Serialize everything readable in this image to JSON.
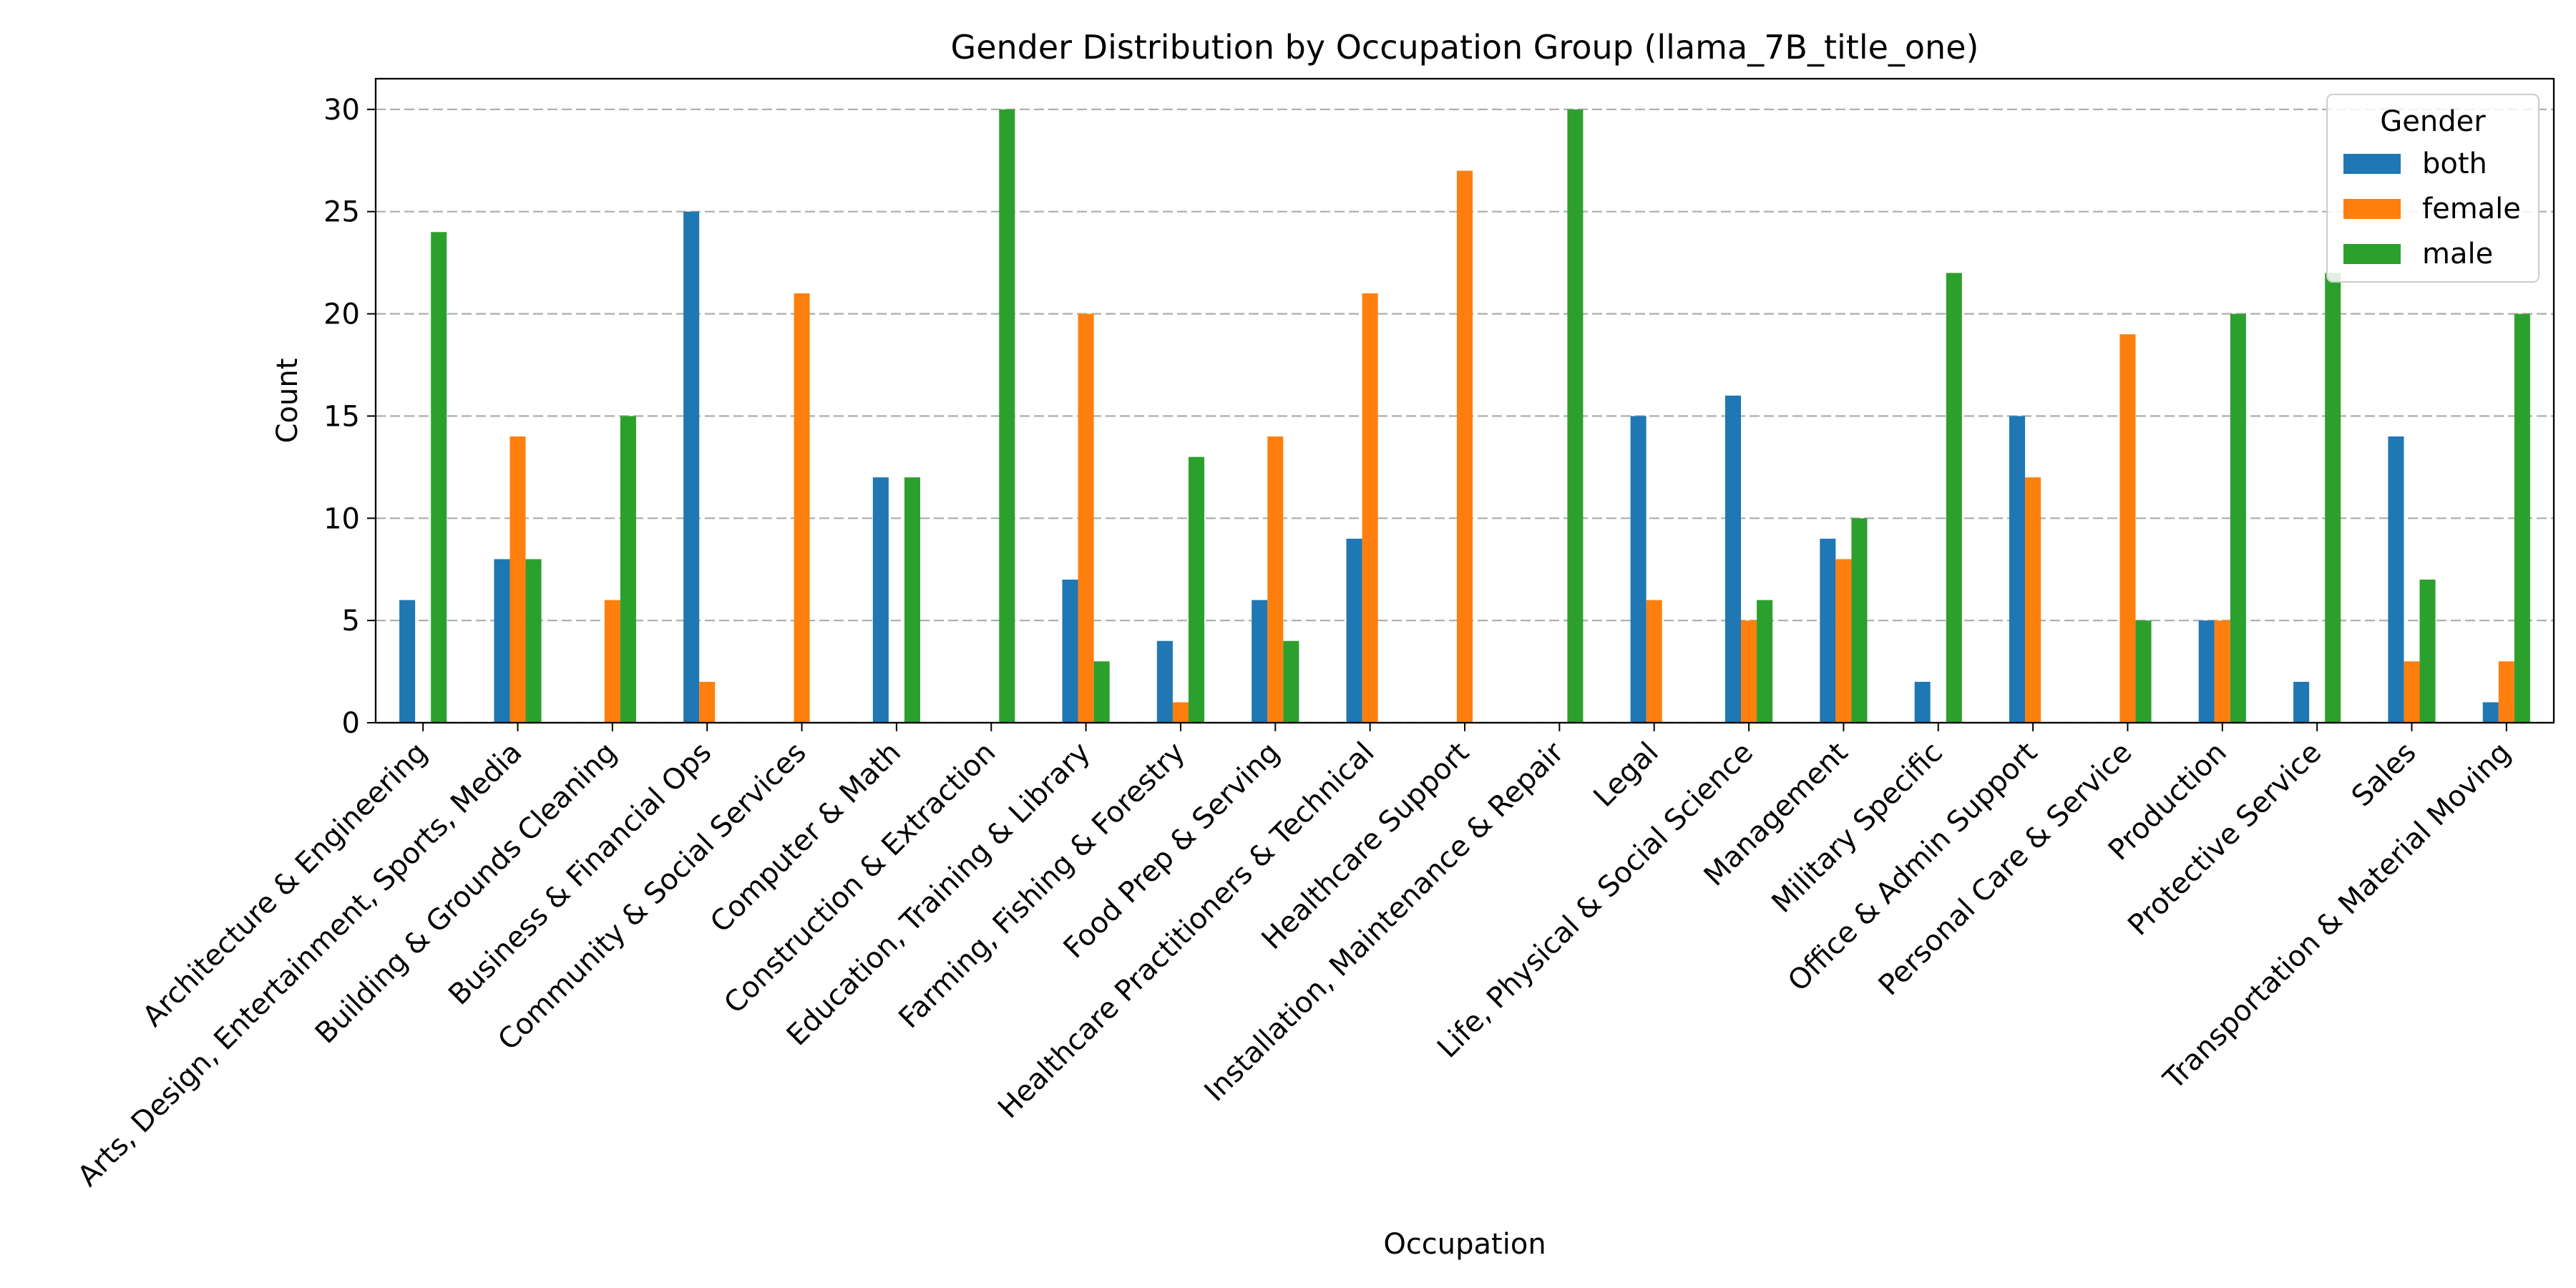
{
  "chart_data": {
    "type": "bar",
    "title": "Gender Distribution by Occupation Group (llama_7B_title_one)",
    "xlabel": "Occupation",
    "ylabel": "Count",
    "ylim": [
      0,
      31.5
    ],
    "yticks": [
      0,
      5,
      10,
      15,
      20,
      25,
      30
    ],
    "grid": "y-dashed",
    "legend": {
      "title": "Gender",
      "position": "top-right"
    },
    "categories": [
      "Architecture & Engineering",
      "Arts, Design, Entertainment, Sports, Media",
      "Building & Grounds Cleaning",
      "Business & Financial Ops",
      "Community & Social Services",
      "Computer & Math",
      "Construction & Extraction",
      "Education, Training & Library",
      "Farming, Fishing & Forestry",
      "Food Prep & Serving",
      "Healthcare Practitioners & Technical",
      "Healthcare Support",
      "Installation, Maintenance & Repair",
      "Legal",
      "Life, Physical & Social Science",
      "Management",
      "Military Specific",
      "Office & Admin Support",
      "Personal Care & Service",
      "Production",
      "Protective Service",
      "Sales",
      "Transportation & Material Moving"
    ],
    "series": [
      {
        "name": "both",
        "color": "#1f77b4",
        "values": [
          6,
          8,
          0,
          25,
          0,
          12,
          0,
          7,
          4,
          6,
          9,
          0,
          0,
          15,
          16,
          9,
          2,
          15,
          0,
          5,
          2,
          14,
          1
        ]
      },
      {
        "name": "female",
        "color": "#ff7f0e",
        "values": [
          0,
          14,
          6,
          2,
          21,
          0,
          0,
          20,
          1,
          14,
          21,
          27,
          0,
          6,
          5,
          8,
          0,
          12,
          19,
          5,
          0,
          3,
          3
        ]
      },
      {
        "name": "male",
        "color": "#2ca02c",
        "values": [
          24,
          8,
          15,
          0,
          0,
          12,
          30,
          3,
          13,
          4,
          0,
          0,
          30,
          0,
          6,
          10,
          22,
          0,
          5,
          20,
          22,
          7,
          20
        ]
      }
    ]
  }
}
